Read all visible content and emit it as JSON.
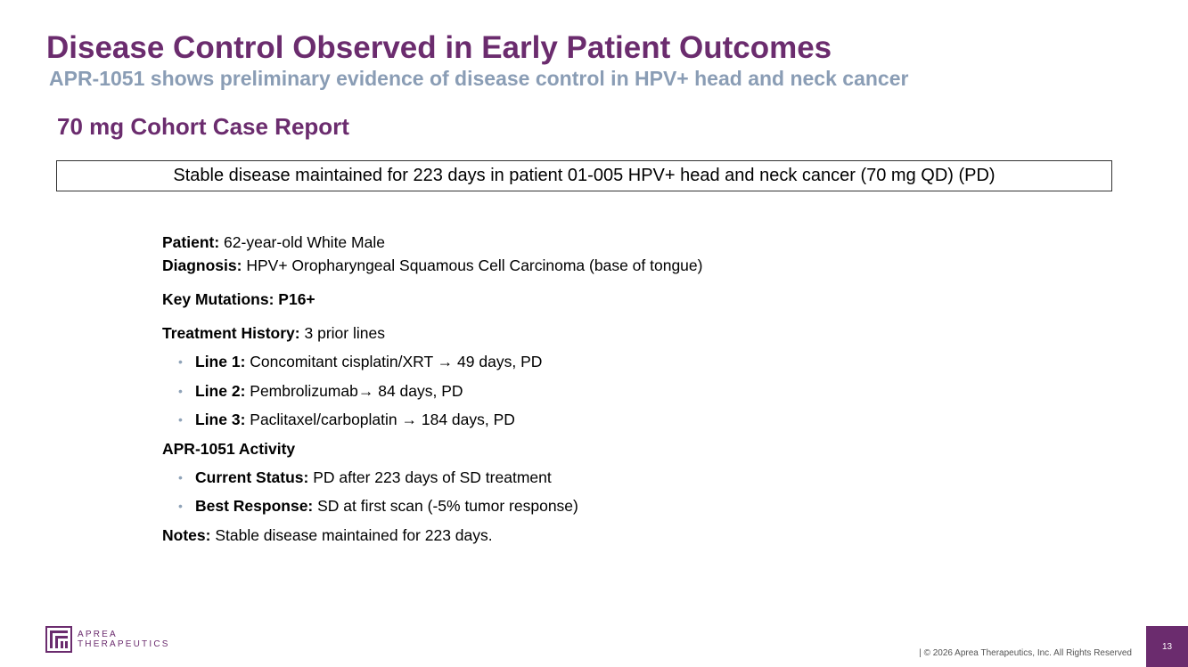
{
  "slide": {
    "title": "Disease Control Observed in Early Patient Outcomes",
    "subtitle": "APR-1051 shows preliminary evidence of disease control in HPV+ head and neck cancer",
    "section_heading": "70 mg Cohort Case Report",
    "summary_box": "Stable disease maintained for 223 days in patient 01-005 HPV+ head and neck cancer (70 mg QD) (PD)"
  },
  "patient": {
    "patient_label": "Patient:",
    "patient_value": " 62-year-old White Male",
    "diagnosis_label": "Diagnosis:",
    "diagnosis_value": " HPV+ Oropharyngeal Squamous Cell Carcinoma (base of tongue)",
    "mutations_label": "Key Mutations: P16+",
    "treatment_label": "Treatment History:",
    "treatment_value": " 3 prior lines",
    "treatment_lines": [
      {
        "label": "Line 1:",
        "value": " Concomitant cisplatin/XRT → 49 days, PD"
      },
      {
        "label": "Line 2:",
        "value": " Pembrolizumab→ 84 days, PD"
      },
      {
        "label": "Line 3:",
        "value": " Paclitaxel/carboplatin → 184 days, PD"
      }
    ],
    "activity_heading": "APR-1051 Activity",
    "activity_items": [
      {
        "label": "Current Status:",
        "value": " PD after 223 days of SD treatment"
      },
      {
        "label": "Best Response:",
        "value": " SD at first scan (-5% tumor response)"
      }
    ],
    "notes_label": "Notes:",
    "notes_value": " Stable disease maintained for 223 days."
  },
  "footer": {
    "logo_line1": "APREA",
    "logo_line2": "THERAPEUTICS",
    "copyright": "| © 2026 Aprea Therapeutics, Inc. All Rights Reserved",
    "page_number": "13"
  },
  "colors": {
    "brand_purple": "#6b2c6e",
    "subtitle_gray_blue": "#8a9db5",
    "bullet_gray": "#8fa3b8"
  },
  "icons": {
    "logo": "aprea-logo-icon",
    "bullet": "bullet-dot-icon"
  }
}
